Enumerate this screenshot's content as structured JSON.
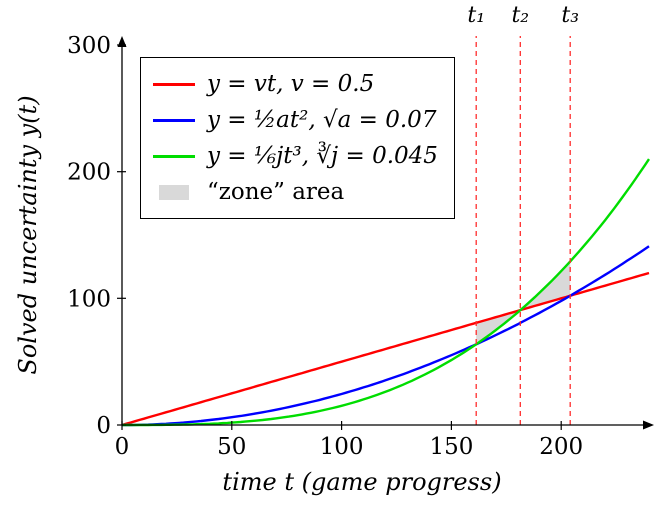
{
  "chart_data": {
    "type": "line",
    "title": "",
    "xlabel": "time t (game progress)",
    "ylabel": "Solved uncertainty y(t)",
    "xlim": [
      0,
      240
    ],
    "ylim": [
      0,
      300
    ],
    "xticks": [
      0,
      50,
      100,
      150,
      200
    ],
    "yticks": [
      0,
      100,
      200,
      300
    ],
    "grid": false,
    "legend_position": "top-left",
    "axis_color": "#000000",
    "series": [
      {
        "name": "linear",
        "label": "y = vt,  v = 0.5",
        "color": "#ff0000",
        "power": 1,
        "coeff": 0.5
      },
      {
        "name": "quadratic",
        "label": "y = ½at²,  √a = 0.07",
        "color": "#0000ff",
        "power": 2,
        "coeff": 0.00245
      },
      {
        "name": "cubic",
        "label": "y = ⅙jt³,  ∛j = 0.045",
        "color": "#00dd00",
        "power": 3,
        "coeff": 1.51875e-05
      }
    ],
    "zone": {
      "label": "“zone” area",
      "color": "#d9d9d9",
      "between": [
        "linear",
        "cubic"
      ],
      "from_t": 161.3,
      "to_t": 204.1
    },
    "markers": [
      {
        "label": "t₁",
        "t": 161.3
      },
      {
        "label": "t₂",
        "t": 181.4
      },
      {
        "label": "t₃",
        "t": 204.1
      }
    ],
    "marker_line_color": "#ff2d2d"
  }
}
